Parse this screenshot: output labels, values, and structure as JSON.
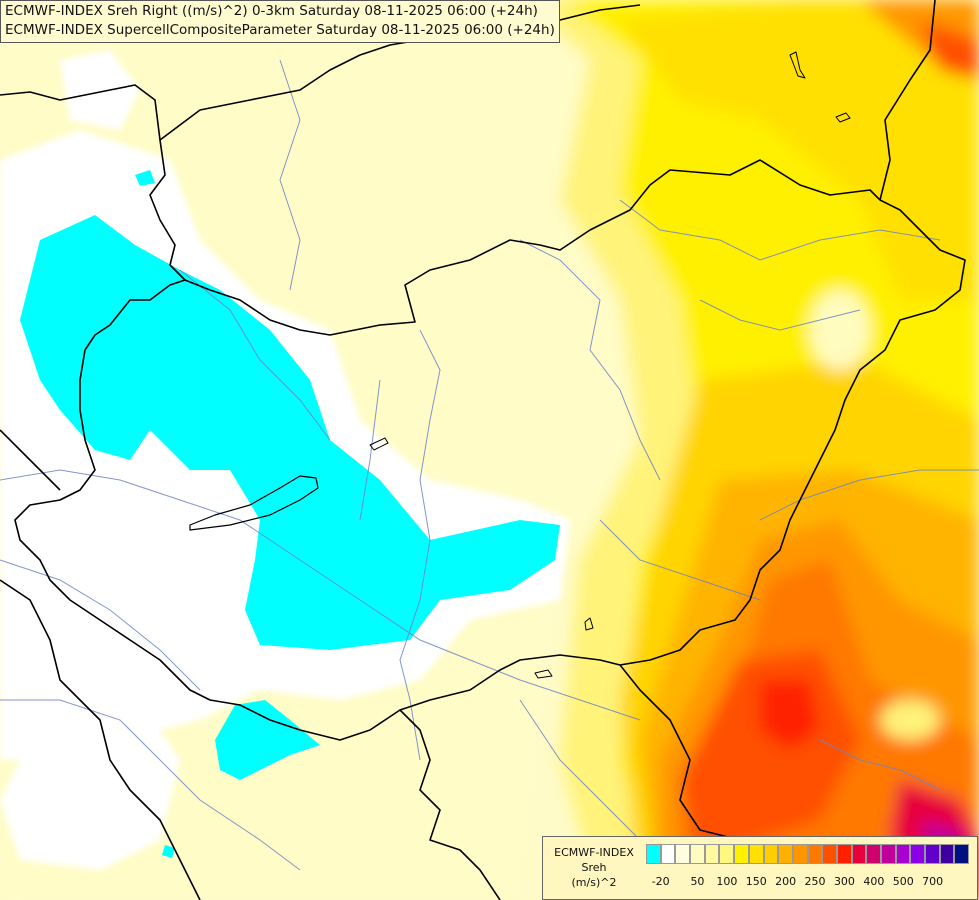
{
  "title": {
    "line1": "ECMWF-INDEX Sreh Right ((m/s)^2) 0-3km Saturday 08-11-2025 06:00 (+24h)",
    "line2": "ECMWF-INDEX SupercellCompositeParameter Saturday 08-11-2025 06:00 (+24h)"
  },
  "legend": {
    "line1": "ECMWF-INDEX",
    "line2": "Sreh",
    "line3": "(m/s)^2",
    "colors": [
      "#00ffff",
      "#ffffff",
      "#fffde0",
      "#fffcc0",
      "#fffaa0",
      "#fff880",
      "#fff000",
      "#ffe000",
      "#ffcc00",
      "#ffb000",
      "#ff9600",
      "#ff7800",
      "#ff5000",
      "#ff2000",
      "#e8003c",
      "#d0006c",
      "#c0009c",
      "#a800d0",
      "#8c00e8",
      "#6000c8",
      "#3c00a0",
      "#001080"
    ],
    "ticks": [
      {
        "label": "-20",
        "index": 0.5
      },
      {
        "label": "50",
        "index": 3
      },
      {
        "label": "100",
        "index": 5
      },
      {
        "label": "150",
        "index": 7
      },
      {
        "label": "200",
        "index": 9
      },
      {
        "label": "250",
        "index": 11
      },
      {
        "label": "300",
        "index": 13
      },
      {
        "label": "400",
        "index": 15
      },
      {
        "label": "500",
        "index": 17
      },
      {
        "label": "700",
        "index": 19
      }
    ]
  }
}
